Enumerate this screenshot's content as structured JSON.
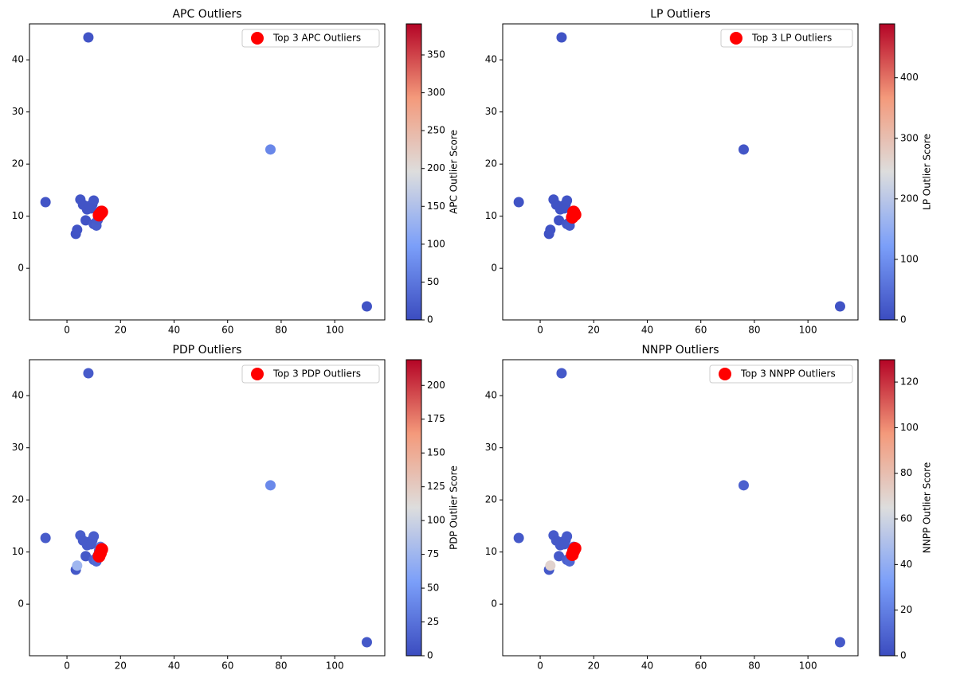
{
  "chart_data": [
    {
      "type": "scatter",
      "title": "APC Outliers",
      "colormap": "coolwarm",
      "x": [
        8,
        76,
        112,
        -8,
        3.3,
        3.8,
        5,
        6,
        7,
        7.5,
        8.5,
        9.5,
        10,
        10,
        11,
        11.5,
        12,
        12.5,
        13,
        9
      ],
      "y": [
        44.3,
        22.8,
        -7.3,
        12.7,
        6.6,
        7.4,
        13.2,
        12.2,
        9.2,
        11.3,
        12,
        12.3,
        13,
        8.5,
        8.2,
        9.3,
        10.3,
        11,
        10.8,
        11.5
      ],
      "scores": [
        10,
        70,
        8,
        10,
        8,
        10,
        12,
        10,
        8,
        10,
        10,
        10,
        12,
        15,
        20,
        18,
        25,
        30,
        25,
        10
      ],
      "outliers": {
        "name": "Top 3 APC Outliers",
        "color": "#ff0000",
        "x": [
          12,
          13,
          12.5
        ],
        "y": [
          10.2,
          10.8,
          10.5
        ]
      },
      "xlim": [
        -14,
        118.7
      ],
      "ylim": [
        -9.9,
        46.9
      ],
      "xticks": [
        0,
        20,
        40,
        60,
        80,
        100
      ],
      "yticks": [
        0,
        10,
        20,
        30,
        40
      ],
      "colorbar": {
        "label": "APC Outlier Score",
        "lim": [
          0,
          391
        ],
        "ticks": [
          0,
          50,
          100,
          150,
          200,
          250,
          300,
          350
        ]
      }
    },
    {
      "type": "scatter",
      "title": "LP Outliers",
      "colormap": "coolwarm",
      "x": [
        8,
        76,
        112,
        -8,
        3.3,
        3.8,
        5,
        6,
        7,
        7.5,
        8.5,
        9.5,
        10,
        10,
        11,
        11.5,
        12,
        12.5,
        13,
        9
      ],
      "y": [
        44.3,
        22.8,
        -7.3,
        12.7,
        6.6,
        7.4,
        13.2,
        12.2,
        9.2,
        11.3,
        12,
        12.3,
        13,
        8.5,
        8.2,
        9.3,
        10.3,
        11,
        10.8,
        11.5
      ],
      "scores": [
        10,
        15,
        10,
        10,
        8,
        10,
        12,
        10,
        8,
        10,
        10,
        10,
        12,
        15,
        20,
        18,
        25,
        30,
        25,
        10
      ],
      "outliers": {
        "name": "Top 3 LP Outliers",
        "color": "#ff0000",
        "x": [
          12,
          13,
          12.5
        ],
        "y": [
          9.8,
          10.3,
          10.8
        ]
      },
      "xlim": [
        -14,
        118.7
      ],
      "ylim": [
        -9.9,
        46.9
      ],
      "xticks": [
        0,
        20,
        40,
        60,
        80,
        100
      ],
      "yticks": [
        0,
        10,
        20,
        30,
        40
      ],
      "colorbar": {
        "label": "LP Outlier Score",
        "lim": [
          0,
          489
        ],
        "ticks": [
          0,
          100,
          200,
          300,
          400
        ]
      }
    },
    {
      "type": "scatter",
      "title": "PDP Outliers",
      "colormap": "coolwarm",
      "x": [
        8,
        76,
        112,
        -8,
        3.3,
        3.8,
        5,
        6,
        7,
        7.5,
        8.5,
        9.5,
        10,
        10,
        11,
        11.5,
        12,
        12.5,
        13,
        9
      ],
      "y": [
        44.3,
        22.8,
        -7.3,
        12.7,
        6.6,
        7.4,
        13.2,
        12.2,
        9.2,
        11.3,
        12,
        12.3,
        13,
        8.5,
        8.2,
        9.3,
        10.3,
        11,
        10.8,
        11.5
      ],
      "scores": [
        10,
        40,
        8,
        10,
        8,
        75,
        12,
        10,
        8,
        10,
        10,
        10,
        12,
        15,
        20,
        18,
        25,
        30,
        25,
        10
      ],
      "outliers": {
        "name": "Top 3 PDP Outliers",
        "color": "#ff0000",
        "x": [
          12,
          13,
          12.5
        ],
        "y": [
          9.2,
          10.5,
          9.8
        ]
      },
      "xlim": [
        -14,
        118.7
      ],
      "ylim": [
        -9.9,
        46.9
      ],
      "xticks": [
        0,
        20,
        40,
        60,
        80,
        100
      ],
      "yticks": [
        0,
        10,
        20,
        30,
        40
      ],
      "colorbar": {
        "label": "PDP Outlier Score",
        "lim": [
          0,
          219
        ],
        "ticks": [
          0,
          25,
          50,
          75,
          100,
          125,
          150,
          175,
          200
        ]
      }
    },
    {
      "type": "scatter",
      "title": "NNPP Outliers",
      "colormap": "coolwarm",
      "x": [
        8,
        76,
        112,
        -8,
        3.3,
        3.8,
        5,
        6,
        7,
        7.5,
        8.5,
        9.5,
        10,
        10,
        11,
        11.5,
        12,
        12.5,
        13,
        9
      ],
      "y": [
        44.3,
        22.8,
        -7.3,
        12.7,
        6.6,
        7.4,
        13.2,
        12.2,
        9.2,
        11.3,
        12,
        12.3,
        13,
        8.5,
        8.2,
        9.3,
        10.3,
        11,
        10.8,
        11.5
      ],
      "scores": [
        5,
        8,
        5,
        5,
        5,
        70,
        6,
        5,
        5,
        5,
        5,
        5,
        6,
        8,
        10,
        9,
        12,
        14,
        12,
        5
      ],
      "outliers": {
        "name": "Top 3 NNPP Outliers",
        "color": "#ff0000",
        "x": [
          12,
          13,
          12.5
        ],
        "y": [
          9.5,
          10.7,
          10.2
        ]
      },
      "xlim": [
        -14,
        118.7
      ],
      "ylim": [
        -9.9,
        46.9
      ],
      "xticks": [
        0,
        20,
        40,
        60,
        80,
        100
      ],
      "yticks": [
        0,
        10,
        20,
        30,
        40
      ],
      "colorbar": {
        "label": "NNPP Outlier Score",
        "lim": [
          0,
          129.8
        ],
        "ticks": [
          0,
          20,
          40,
          60,
          80,
          100,
          120
        ]
      }
    }
  ]
}
